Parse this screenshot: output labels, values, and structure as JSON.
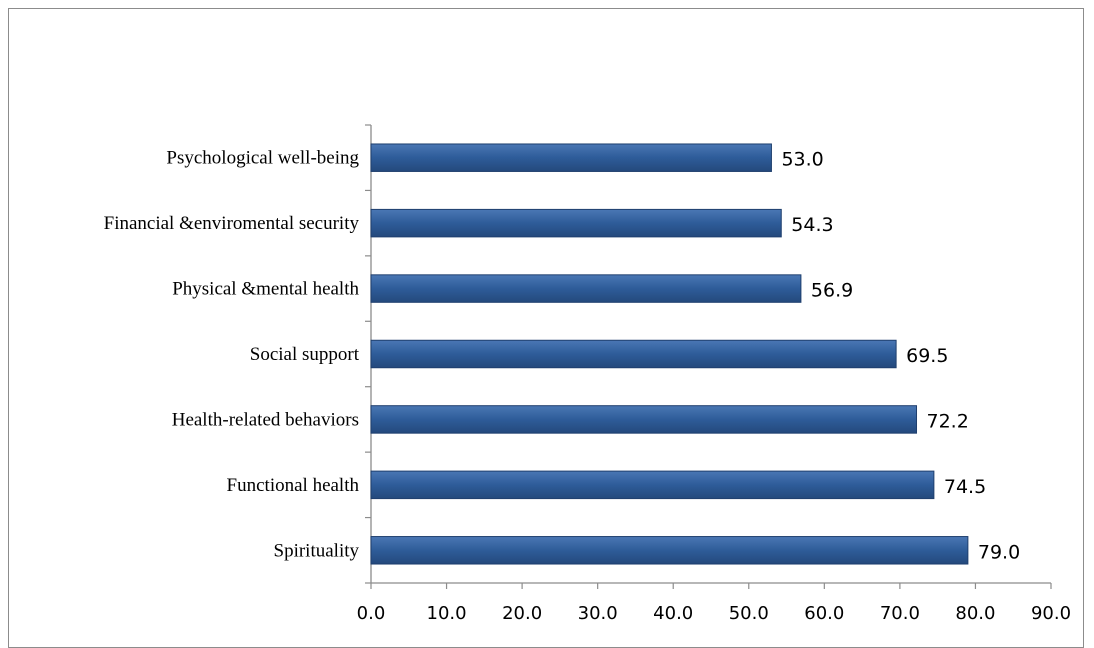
{
  "chart_data": {
    "type": "bar",
    "orientation": "horizontal",
    "categories": [
      "Psychological well-being",
      "Financial &enviromental security",
      "Physical &mental health",
      "Social support",
      "Health-related behaviors",
      "Functional health",
      "Spirituality"
    ],
    "values": [
      53.0,
      54.3,
      56.9,
      69.5,
      72.2,
      74.5,
      79.0
    ],
    "data_labels": [
      "53.0",
      "54.3",
      "56.9",
      "69.5",
      "72.2",
      "74.5",
      "79.0"
    ],
    "xlim": [
      0,
      90
    ],
    "x_ticks": [
      "0.0",
      "10.0",
      "20.0",
      "30.0",
      "40.0",
      "50.0",
      "60.0",
      "70.0",
      "80.0",
      "90.0"
    ],
    "title": "",
    "xlabel": "",
    "ylabel": "",
    "grid": false,
    "legend": "none",
    "bar_color": "#2e5c99",
    "bar_edge_color": "#1f3f6e"
  }
}
